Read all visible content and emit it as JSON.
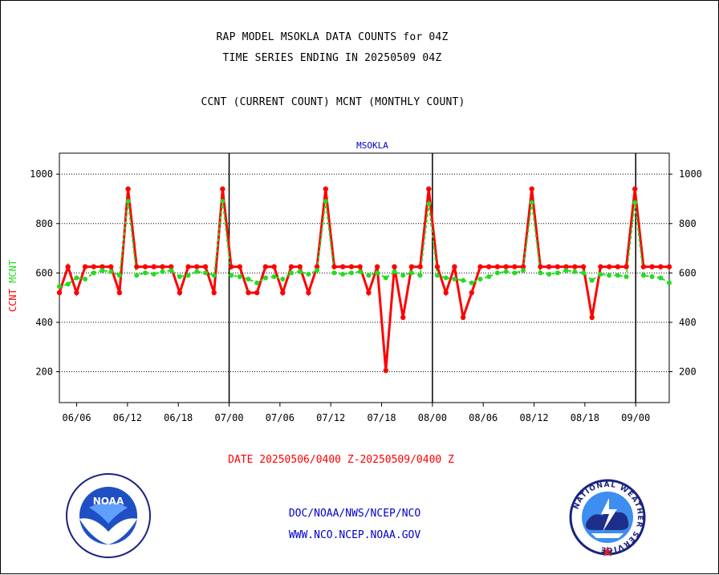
{
  "header": {
    "title_line1": "RAP MODEL MSOKLA DATA COUNTS for 04Z",
    "title_line2": "TIME SERIES ENDING IN 20250509 04Z",
    "title_line3": "CCNT (CURRENT COUNT) MCNT (MONTHLY COUNT)"
  },
  "footer": {
    "date_range": "DATE 20250506/0400 Z-20250509/0400 Z",
    "link_org": "DOC/NOAA/NWS/NCEP/NCO",
    "link_web": "WWW.NCO.NCEP.NOAA.GOV"
  },
  "logos": {
    "noaa_text": "NOAA",
    "nws_text": "NATIONAL WEATHER SERVICE"
  },
  "colors": {
    "ccnt": "#ff0000",
    "mcnt": "#22dd22",
    "panel_label": "#0000cc"
  },
  "chart_data": {
    "type": "line",
    "title": "MSOKLA",
    "ylabel_left": [
      "CCNT",
      "MCNT"
    ],
    "ylim": [
      75,
      1085
    ],
    "yticks": [
      200,
      400,
      600,
      800,
      1000
    ],
    "ytick_labels": [
      "200",
      "400",
      "600",
      "800",
      "1000"
    ],
    "grid": true,
    "x_index_range": [
      0,
      60
    ],
    "xticks": [
      {
        "i": 1.7,
        "label": "06/06"
      },
      {
        "i": 6.7,
        "label": "06/12"
      },
      {
        "i": 11.7,
        "label": "06/18"
      },
      {
        "i": 16.7,
        "label": "07/00"
      },
      {
        "i": 21.7,
        "label": "07/06"
      },
      {
        "i": 26.7,
        "label": "07/12"
      },
      {
        "i": 31.7,
        "label": "07/18"
      },
      {
        "i": 36.7,
        "label": "08/00"
      },
      {
        "i": 41.7,
        "label": "08/06"
      },
      {
        "i": 46.7,
        "label": "08/12"
      },
      {
        "i": 51.7,
        "label": "08/18"
      },
      {
        "i": 56.7,
        "label": "09/00"
      }
    ],
    "day_boundaries": [
      16.7,
      36.7,
      56.7
    ],
    "series": [
      {
        "name": "CCNT",
        "color": "#ff0000",
        "values": [
          520,
          625,
          520,
          625,
          625,
          625,
          625,
          520,
          940,
          625,
          625,
          625,
          625,
          625,
          520,
          625,
          625,
          625,
          520,
          940,
          625,
          625,
          520,
          520,
          625,
          625,
          520,
          625,
          625,
          520,
          625,
          940,
          625,
          625,
          625,
          625,
          520,
          625,
          205,
          625,
          420,
          625,
          625,
          940,
          625,
          520,
          625,
          420,
          520,
          625,
          625,
          625,
          625,
          625,
          625,
          940,
          625,
          625,
          625,
          625,
          625,
          625,
          420,
          625,
          625,
          625,
          625,
          940,
          625,
          625,
          625,
          625
        ]
      },
      {
        "name": "MCNT",
        "color": "#22dd22",
        "values": [
          545,
          555,
          580,
          575,
          600,
          610,
          605,
          590,
          890,
          590,
          600,
          595,
          605,
          610,
          585,
          590,
          605,
          600,
          590,
          890,
          590,
          585,
          575,
          560,
          580,
          585,
          575,
          600,
          605,
          595,
          610,
          890,
          600,
          595,
          600,
          605,
          590,
          600,
          580,
          605,
          590,
          600,
          590,
          880,
          590,
          580,
          575,
          570,
          560,
          575,
          585,
          600,
          605,
          600,
          610,
          885,
          600,
          595,
          600,
          610,
          605,
          600,
          570,
          595,
          590,
          590,
          585,
          885,
          590,
          585,
          580,
          560
        ]
      }
    ]
  }
}
